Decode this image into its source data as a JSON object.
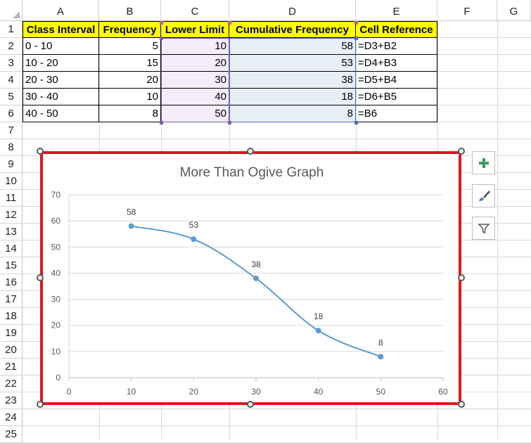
{
  "columns": [
    "A",
    "B",
    "C",
    "D",
    "E",
    "F",
    "G"
  ],
  "rows": [
    "1",
    "2",
    "3",
    "4",
    "5",
    "6",
    "7",
    "8",
    "9",
    "10",
    "11",
    "12",
    "13",
    "14",
    "15",
    "16",
    "17",
    "18",
    "19",
    "20",
    "21",
    "22",
    "23",
    "24",
    "25"
  ],
  "table": {
    "headers": [
      "Class Interval",
      "Frequency",
      "Lower Limit",
      "Cumulative Frequency",
      "Cell Reference"
    ],
    "rows": [
      [
        "0 - 10",
        "5",
        "10",
        "58",
        "=D3+B2"
      ],
      [
        "10 - 20",
        "15",
        "20",
        "53",
        "=D4+B3"
      ],
      [
        "20 - 30",
        "20",
        "30",
        "38",
        "=D5+B4"
      ],
      [
        "30 - 40",
        "10",
        "40",
        "18",
        "=D6+B5"
      ],
      [
        "40 - 50",
        "8",
        "50",
        "8",
        "=B6"
      ]
    ]
  },
  "chart_data": {
    "type": "scatter",
    "title": "More Than Ogive Graph",
    "xlabel": "",
    "ylabel": "",
    "x": [
      10,
      20,
      30,
      40,
      50
    ],
    "y": [
      58,
      53,
      38,
      18,
      8
    ],
    "data_labels": [
      "58",
      "53",
      "38",
      "18",
      "8"
    ],
    "xlim": [
      0,
      60
    ],
    "ylim": [
      0,
      70
    ],
    "xticks": [
      "0",
      "10",
      "20",
      "30",
      "40",
      "50",
      "60"
    ],
    "yticks": [
      "0",
      "10",
      "20",
      "30",
      "40",
      "50",
      "60",
      "70"
    ],
    "grid": "horizontal",
    "line": "smooth",
    "series_color": "#5b9bd5"
  },
  "colors": {
    "header_fill": "#ffff00",
    "chart_selection": "#e1151f",
    "lower_limit_range": "#7f5fa8",
    "cumulative_range": "#4472c4"
  },
  "chart_tools": [
    {
      "name": "chart-elements",
      "icon": "plus-icon"
    },
    {
      "name": "chart-styles",
      "icon": "brush-icon"
    },
    {
      "name": "chart-filters",
      "icon": "filter-icon"
    }
  ]
}
